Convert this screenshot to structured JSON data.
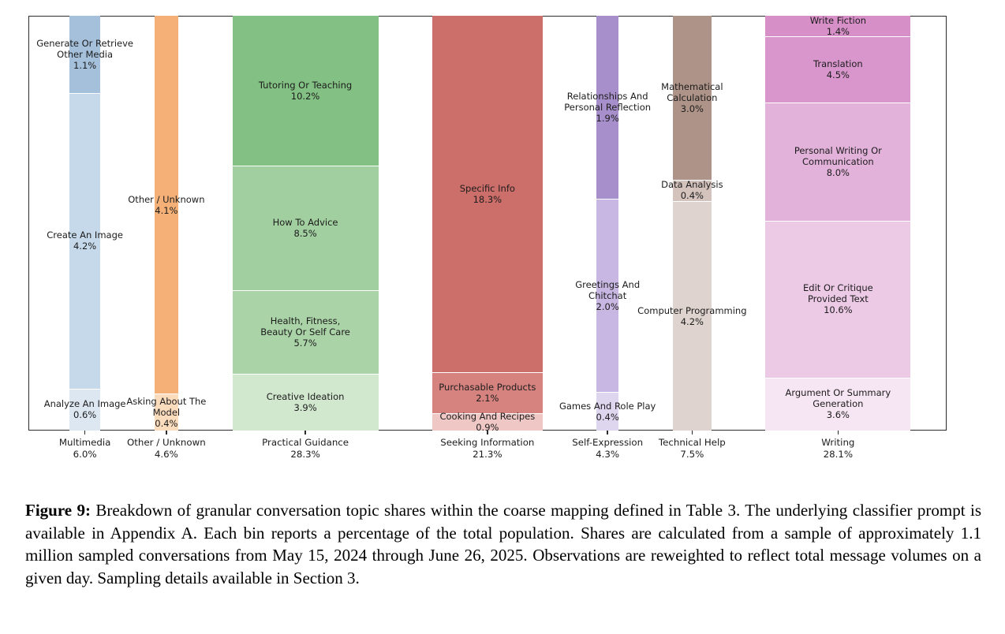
{
  "figure": {
    "caption_label": "Figure 9:",
    "caption_text": " Breakdown of granular conversation topic shares within the coarse mapping defined in Table 3. The underlying classifier prompt is available in Appendix A. Each bin reports a percentage of the total population. Shares are calculated from a sample of approximately 1.1 million sampled conversations from May 15, 2024 through June 26, 2025. Observations are reweighted to reflect total message volumes on a given day. Sampling details available in Section 3."
  },
  "chart_data": {
    "type": "bar",
    "variant": "marimekko-mosaic",
    "unit": "%",
    "title": "",
    "xlabel": "",
    "ylabel": "",
    "legend": "none",
    "grid": false,
    "notes": "Column width encodes category total share; each column normalized to full height; segment heights proportional to within-category share.",
    "columns": [
      {
        "category": "Multimedia",
        "total": 6.0,
        "total_label": "6.0%",
        "segments": [
          {
            "name_lines": [
              "Generate Or Retrieve",
              "Other Media"
            ],
            "name": "Generate Or Retrieve Other Media",
            "value": 1.1,
            "pct_label": "1.1%",
            "color": "#a4c0db"
          },
          {
            "name_lines": [
              "Create An Image"
            ],
            "name": "Create An Image",
            "value": 4.2,
            "pct_label": "4.2%",
            "color": "#c6d9ea"
          },
          {
            "name_lines": [
              "Analyze An Image"
            ],
            "name": "Analyze An Image",
            "value": 0.6,
            "pct_label": "0.6%",
            "color": "#dce7f2"
          }
        ]
      },
      {
        "category": "Other / Unknown",
        "total": 4.6,
        "total_label": "4.6%",
        "segments": [
          {
            "name_lines": [
              "Other / Unknown"
            ],
            "name": "Other / Unknown",
            "value": 4.1,
            "pct_label": "4.1%",
            "color": "#f4b076"
          },
          {
            "name_lines": [
              "Asking About The",
              "Model"
            ],
            "name": "Asking About The Model",
            "value": 0.4,
            "pct_label": "0.4%",
            "color": "#fbdcbd"
          }
        ]
      },
      {
        "category": "Practical Guidance",
        "total": 28.3,
        "total_label": "28.3%",
        "segments": [
          {
            "name_lines": [
              "Tutoring Or Teaching"
            ],
            "name": "Tutoring Or Teaching",
            "value": 10.2,
            "pct_label": "10.2%",
            "color": "#83c083"
          },
          {
            "name_lines": [
              "How To Advice"
            ],
            "name": "How To Advice",
            "value": 8.5,
            "pct_label": "8.5%",
            "color": "#a2cfa0"
          },
          {
            "name_lines": [
              "Health, Fitness,",
              "Beauty Or Self Care"
            ],
            "name": "Health, Fitness, Beauty Or Self Care",
            "value": 5.7,
            "pct_label": "5.7%",
            "color": "#aad4a7"
          },
          {
            "name_lines": [
              "Creative Ideation"
            ],
            "name": "Creative Ideation",
            "value": 3.9,
            "pct_label": "3.9%",
            "color": "#d1e8ce"
          }
        ]
      },
      {
        "category": "Seeking Information",
        "total": 21.3,
        "total_label": "21.3%",
        "segments": [
          {
            "name_lines": [
              "Specific Info"
            ],
            "name": "Specific Info",
            "value": 18.3,
            "pct_label": "18.3%",
            "color": "#cc6e6a"
          },
          {
            "name_lines": [
              "Purchasable Products"
            ],
            "name": "Purchasable Products",
            "value": 2.1,
            "pct_label": "2.1%",
            "color": "#d6837f"
          },
          {
            "name_lines": [
              "Cooking And Recipes"
            ],
            "name": "Cooking And Recipes",
            "value": 0.9,
            "pct_label": "0.9%",
            "color": "#efc8c6"
          }
        ]
      },
      {
        "category": "Self-Expression",
        "total": 4.3,
        "total_label": "4.3%",
        "segments": [
          {
            "name_lines": [
              "Relationships And",
              "Personal Reflection"
            ],
            "name": "Relationships And Personal Reflection",
            "value": 1.9,
            "pct_label": "1.9%",
            "color": "#a78fcb"
          },
          {
            "name_lines": [
              "Greetings And",
              "Chitchat"
            ],
            "name": "Greetings And Chitchat",
            "value": 2.0,
            "pct_label": "2.0%",
            "color": "#c7b7e2"
          },
          {
            "name_lines": [
              "Games And Role Play"
            ],
            "name": "Games And Role Play",
            "value": 0.4,
            "pct_label": "0.4%",
            "color": "#ded5ef"
          }
        ]
      },
      {
        "category": "Technical Help",
        "total": 7.5,
        "total_label": "7.5%",
        "segments": [
          {
            "name_lines": [
              "Mathematical",
              "Calculation"
            ],
            "name": "Mathematical Calculation",
            "value": 3.0,
            "pct_label": "3.0%",
            "color": "#ae9488"
          },
          {
            "name_lines": [
              "Data Analysis"
            ],
            "name": "Data Analysis",
            "value": 0.4,
            "pct_label": "0.4%",
            "color": "#d3c3bc"
          },
          {
            "name_lines": [
              "Computer Programming"
            ],
            "name": "Computer Programming",
            "value": 4.2,
            "pct_label": "4.2%",
            "color": "#ded3ce"
          }
        ]
      },
      {
        "category": "Writing",
        "total": 28.1,
        "total_label": "28.1%",
        "segments": [
          {
            "name_lines": [
              "Write Fiction"
            ],
            "name": "Write Fiction",
            "value": 1.4,
            "pct_label": "1.4%",
            "color": "#d78fc8"
          },
          {
            "name_lines": [
              "Translation"
            ],
            "name": "Translation",
            "value": 4.5,
            "pct_label": "4.5%",
            "color": "#d996cc"
          },
          {
            "name_lines": [
              "Personal Writing Or",
              "Communication"
            ],
            "name": "Personal Writing Or Communication",
            "value": 8.0,
            "pct_label": "8.0%",
            "color": "#e2b2da"
          },
          {
            "name_lines": [
              "Edit Or Critique",
              "Provided Text"
            ],
            "name": "Edit Or Critique Provided Text",
            "value": 10.6,
            "pct_label": "10.6%",
            "color": "#ecc9e5"
          },
          {
            "name_lines": [
              "Argument Or Summary",
              "Generation"
            ],
            "name": "Argument Or Summary Generation",
            "value": 3.6,
            "pct_label": "3.6%",
            "color": "#f6e5f2"
          }
        ]
      }
    ]
  }
}
